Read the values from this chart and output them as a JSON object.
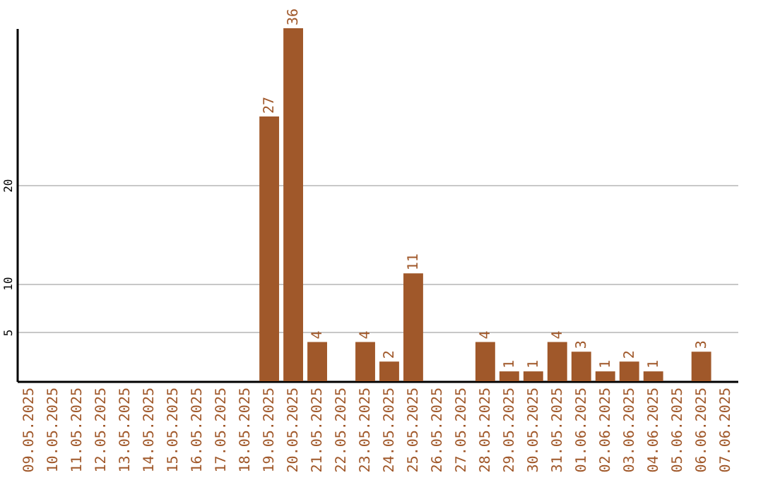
{
  "chart_data": {
    "type": "bar",
    "categories": [
      "09.05.2025",
      "10.05.2025",
      "11.05.2025",
      "12.05.2025",
      "13.05.2025",
      "14.05.2025",
      "15.05.2025",
      "16.05.2025",
      "17.05.2025",
      "18.05.2025",
      "19.05.2025",
      "20.05.2025",
      "21.05.2025",
      "22.05.2025",
      "23.05.2025",
      "24.05.2025",
      "25.05.2025",
      "26.05.2025",
      "27.05.2025",
      "28.05.2025",
      "29.05.2025",
      "30.05.2025",
      "31.05.2025",
      "01.06.2025",
      "02.06.2025",
      "03.06.2025",
      "04.06.2025",
      "05.06.2025",
      "06.06.2025",
      "07.06.2025"
    ],
    "values": [
      0,
      0,
      0,
      0,
      0,
      0,
      0,
      0,
      0,
      0,
      27,
      36,
      4,
      0,
      4,
      2,
      11,
      0,
      0,
      4,
      1,
      1,
      4,
      3,
      1,
      2,
      1,
      0,
      3,
      0
    ],
    "value_labels": [
      null,
      null,
      null,
      null,
      null,
      null,
      null,
      null,
      null,
      null,
      "27",
      "36",
      "4",
      null,
      "4",
      "2",
      "11",
      null,
      null,
      "4",
      "1",
      "1",
      "4",
      "3",
      "1",
      "2",
      "1",
      null,
      "3",
      null
    ],
    "color": "#a0582a",
    "ylim": [
      0,
      36
    ],
    "yticks": [
      5,
      10,
      20
    ],
    "grid": "y"
  }
}
